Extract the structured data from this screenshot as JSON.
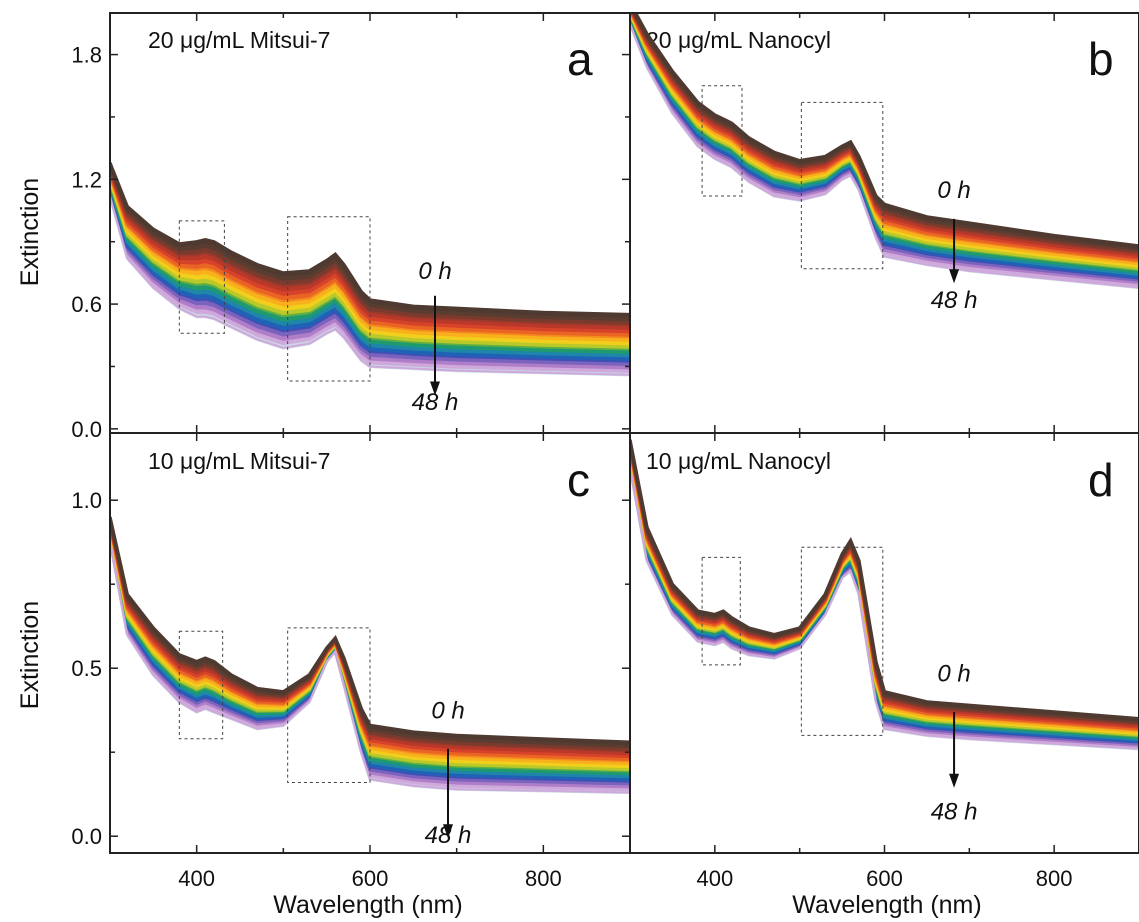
{
  "figure": {
    "xlabel": "Wavelength (nm)",
    "ylabel": "Extinction",
    "arrow_top": "0 h",
    "arrow_bottom": "48 h"
  },
  "colors": {
    "t0": "#4e3a30",
    "palette": [
      "#4e3a30",
      "#5a3d31",
      "#7a3b2e",
      "#9a3a2a",
      "#b8382a",
      "#d6432a",
      "#ea6424",
      "#f48a1f",
      "#f8b01c",
      "#f2cf1d",
      "#b9c92a",
      "#5fae43",
      "#1f9a6f",
      "#1e86a9",
      "#1f62b6",
      "#3f4fb5",
      "#7a63bd",
      "#b07ec8",
      "#cfa8dc",
      "#c9d8e4"
    ]
  },
  "chart_data": [
    {
      "type": "line",
      "panel": "a",
      "title": "20 μg/mL Mitsui-7",
      "letter": "a",
      "xlim": [
        300,
        900
      ],
      "ylim": [
        -0.02,
        2.0
      ],
      "xticks": [
        400,
        600,
        800
      ],
      "yticks": [
        "0.0",
        "0.6",
        "1.2",
        "1.8"
      ],
      "ytick_values": [
        0.0,
        0.6,
        1.2,
        1.8
      ],
      "show_xlabel": false,
      "time_points": [
        "0 h",
        "48 h"
      ],
      "x": [
        300,
        320,
        350,
        380,
        400,
        410,
        420,
        440,
        470,
        500,
        530,
        550,
        560,
        570,
        590,
        600,
        650,
        700,
        800,
        900
      ],
      "series": [
        {
          "name": "0 h",
          "values": [
            1.28,
            1.07,
            0.96,
            0.89,
            0.9,
            0.91,
            0.9,
            0.85,
            0.79,
            0.75,
            0.76,
            0.81,
            0.84,
            0.79,
            0.66,
            0.62,
            0.59,
            0.58,
            0.56,
            0.55
          ]
        },
        {
          "name": "48 h",
          "values": [
            1.12,
            0.82,
            0.68,
            0.58,
            0.54,
            0.54,
            0.53,
            0.49,
            0.43,
            0.39,
            0.41,
            0.46,
            0.48,
            0.44,
            0.33,
            0.3,
            0.29,
            0.28,
            0.27,
            0.26
          ]
        }
      ],
      "annotation": {
        "arrow_x": 675,
        "arrow_from": 0.64,
        "arrow_to": 0.17,
        "top_y": 0.72,
        "bottom_y": 0.09
      }
    },
    {
      "type": "line",
      "panel": "b",
      "title": "20 μg/mL Nanocyl",
      "letter": "b",
      "xlim": [
        300,
        900
      ],
      "ylim": [
        -0.02,
        2.0
      ],
      "xticks": [
        400,
        600,
        800
      ],
      "yticks": [],
      "show_xlabel": false,
      "time_points": [
        "0 h",
        "48 h"
      ],
      "x": [
        300,
        320,
        350,
        380,
        400,
        410,
        420,
        440,
        470,
        500,
        530,
        550,
        560,
        570,
        590,
        600,
        650,
        700,
        800,
        900
      ],
      "series": [
        {
          "name": "0 h",
          "values": [
            2.05,
            1.9,
            1.72,
            1.57,
            1.51,
            1.49,
            1.47,
            1.4,
            1.33,
            1.29,
            1.31,
            1.36,
            1.38,
            1.31,
            1.12,
            1.08,
            1.02,
            0.99,
            0.93,
            0.88
          ]
        },
        {
          "name": "48 h",
          "values": [
            1.95,
            1.74,
            1.52,
            1.36,
            1.3,
            1.28,
            1.26,
            1.19,
            1.12,
            1.1,
            1.13,
            1.2,
            1.22,
            1.15,
            0.92,
            0.83,
            0.79,
            0.76,
            0.72,
            0.68
          ]
        }
      ],
      "annotation": {
        "arrow_x": 682,
        "arrow_from": 1.01,
        "arrow_to": 0.71,
        "top_y": 1.11,
        "bottom_y": 0.58
      }
    },
    {
      "type": "line",
      "panel": "c",
      "title": "10 μg/mL Mitsui-7",
      "letter": "c",
      "xlim": [
        300,
        900
      ],
      "ylim": [
        -0.05,
        1.2
      ],
      "xticks": [
        400,
        600,
        800
      ],
      "yticks": [
        "0.0",
        "0.5",
        "1.0"
      ],
      "ytick_values": [
        0.0,
        0.5,
        1.0
      ],
      "show_xlabel": true,
      "time_points": [
        "0 h",
        "48 h"
      ],
      "x": [
        300,
        320,
        350,
        380,
        400,
        410,
        420,
        440,
        470,
        500,
        530,
        550,
        560,
        570,
        590,
        600,
        650,
        700,
        800,
        900
      ],
      "series": [
        {
          "name": "0 h",
          "values": [
            0.95,
            0.72,
            0.62,
            0.54,
            0.52,
            0.53,
            0.52,
            0.48,
            0.44,
            0.43,
            0.48,
            0.56,
            0.59,
            0.53,
            0.38,
            0.33,
            0.31,
            0.3,
            0.29,
            0.28
          ]
        },
        {
          "name": "48 h",
          "values": [
            0.88,
            0.6,
            0.48,
            0.4,
            0.37,
            0.38,
            0.37,
            0.35,
            0.32,
            0.33,
            0.4,
            0.52,
            0.55,
            0.45,
            0.25,
            0.17,
            0.15,
            0.14,
            0.135,
            0.13
          ]
        }
      ],
      "annotation": {
        "arrow_x": 690,
        "arrow_from": 0.26,
        "arrow_to": 0.0,
        "top_y": 0.35,
        "bottom_y": -0.02
      }
    },
    {
      "type": "line",
      "panel": "d",
      "title": "10 μg/mL Nanocyl",
      "letter": "d",
      "xlim": [
        300,
        900
      ],
      "ylim": [
        -0.05,
        1.2
      ],
      "xticks": [
        400,
        600,
        800
      ],
      "yticks": [],
      "show_xlabel": true,
      "time_points": [
        "0 h",
        "48 h"
      ],
      "x": [
        300,
        320,
        350,
        380,
        400,
        410,
        420,
        440,
        470,
        500,
        530,
        550,
        560,
        570,
        590,
        600,
        650,
        700,
        800,
        900
      ],
      "series": [
        {
          "name": "0 h",
          "values": [
            1.18,
            0.92,
            0.75,
            0.67,
            0.66,
            0.67,
            0.65,
            0.62,
            0.6,
            0.62,
            0.72,
            0.84,
            0.88,
            0.82,
            0.52,
            0.43,
            0.4,
            0.39,
            0.37,
            0.35
          ]
        },
        {
          "name": "48 h",
          "values": [
            1.1,
            0.82,
            0.66,
            0.58,
            0.57,
            0.58,
            0.56,
            0.54,
            0.53,
            0.56,
            0.66,
            0.77,
            0.79,
            0.72,
            0.4,
            0.32,
            0.3,
            0.29,
            0.275,
            0.26
          ]
        }
      ],
      "annotation": {
        "arrow_x": 682,
        "arrow_from": 0.37,
        "arrow_to": 0.15,
        "top_y": 0.46,
        "bottom_y": 0.05
      }
    }
  ]
}
